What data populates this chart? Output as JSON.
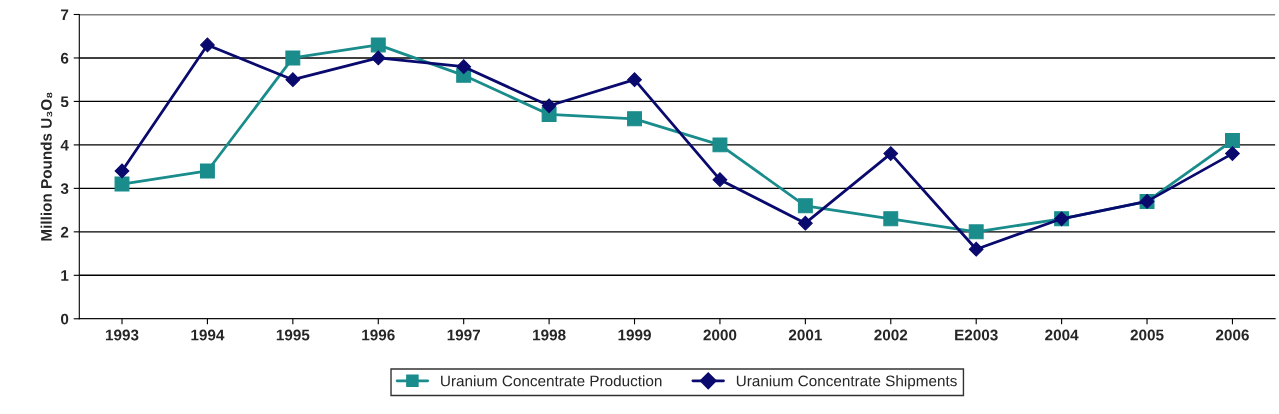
{
  "chart_data": {
    "type": "line",
    "ylabel": "Million Pounds U₃O₈",
    "categories": [
      "1993",
      "1994",
      "1995",
      "1996",
      "1997",
      "1998",
      "1999",
      "2000",
      "2001",
      "2002",
      "E2003",
      "2004",
      "2005",
      "2006"
    ],
    "series": [
      {
        "name": "Uranium Concentrate Production",
        "color": "#1a8c8c",
        "marker": "square",
        "values": [
          3.1,
          3.4,
          6.0,
          6.3,
          5.6,
          4.7,
          4.6,
          4.0,
          2.6,
          2.3,
          2.0,
          2.3,
          2.7,
          4.1
        ]
      },
      {
        "name": "Uranium Concentrate Shipments",
        "color": "#0a0a6e",
        "marker": "diamond",
        "values": [
          3.4,
          6.3,
          5.5,
          6.0,
          5.8,
          4.9,
          5.5,
          3.2,
          2.2,
          3.8,
          1.6,
          2.3,
          2.7,
          3.8
        ]
      }
    ],
    "ylim": [
      0,
      7
    ],
    "yticks": [
      0,
      1,
      2,
      3,
      4,
      5,
      6,
      7
    ],
    "grid": "y",
    "legend": "bottom"
  }
}
